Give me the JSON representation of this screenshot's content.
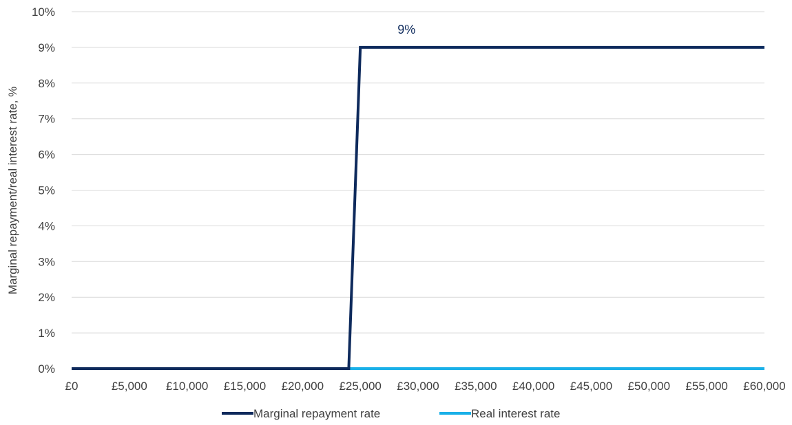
{
  "chart_data": {
    "type": "line",
    "title": "",
    "xlabel": "",
    "ylabel": "Marginal repayment/real interest rate, %",
    "x_ticks": [
      "£0",
      "£5,000",
      "£10,000",
      "£15,000",
      "£20,000",
      "£25,000",
      "£30,000",
      "£35,000",
      "£40,000",
      "£45,000",
      "£50,000",
      "£55,000",
      "£60,000"
    ],
    "x_tick_values": [
      0,
      5000,
      10000,
      15000,
      20000,
      25000,
      30000,
      35000,
      40000,
      45000,
      50000,
      55000,
      60000
    ],
    "y_ticks": [
      "0%",
      "1%",
      "2%",
      "3%",
      "4%",
      "5%",
      "6%",
      "7%",
      "8%",
      "9%",
      "10%"
    ],
    "y_tick_values": [
      0,
      1,
      2,
      3,
      4,
      5,
      6,
      7,
      8,
      9,
      10
    ],
    "xlim": [
      0,
      60000
    ],
    "ylim": [
      0,
      10
    ],
    "grid": "horizontal",
    "legend_position": "bottom",
    "series": [
      {
        "name": "Marginal repayment rate",
        "color": "#0e2a5c",
        "x": [
          0,
          24000,
          25000,
          60000
        ],
        "y": [
          0,
          0,
          9,
          9
        ]
      },
      {
        "name": "Real interest rate",
        "color": "#1ab0e8",
        "x": [
          0,
          60000
        ],
        "y": [
          0,
          0
        ]
      }
    ],
    "annotations": [
      {
        "text": "9%",
        "x": 29000,
        "y": 9.5,
        "color": "#0e2a5c"
      }
    ]
  }
}
